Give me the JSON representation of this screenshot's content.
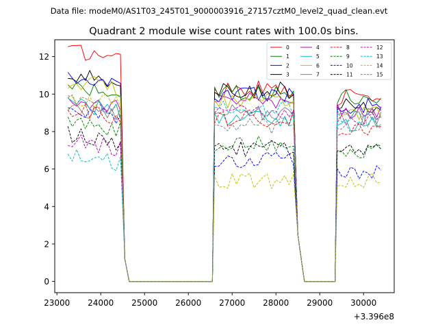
{
  "chart_data": {
    "type": "line",
    "header": "Data file: modeM0/AS1T03_245T01_9000003916_27157cztM0_level2_quad_clean.evt",
    "title": "Quadrant 2 module wise count rates with 100.0s bins.",
    "xlabel": "",
    "ylabel": "",
    "x_offset_label": "+3.396e8",
    "xlim": [
      22950,
      30700
    ],
    "ylim": [
      -0.6,
      12.9
    ],
    "xticks": [
      23000,
      24000,
      25000,
      26000,
      27000,
      28000,
      29000,
      30000
    ],
    "yticks": [
      0,
      2,
      4,
      6,
      8,
      10,
      12
    ],
    "segments": [
      {
        "start": 23250,
        "end": 24450,
        "step": 100
      },
      {
        "start": 26600,
        "end": 28400,
        "step": 100
      },
      {
        "start": 29400,
        "end": 30400,
        "step": 100
      }
    ],
    "zero_ranges": [
      [
        24650,
        26550
      ],
      [
        28650,
        29350
      ]
    ],
    "seg_levels": [
      [
        12.1,
        10.1,
        10.7,
        10.8,
        9.6,
        9.3,
        10.5,
        9.0,
        9.0,
        8.3,
        8.9,
        7.6,
        7.3,
        6.5,
        9.6,
        9.3
      ],
      [
        10.3,
        10.1,
        10.0,
        10.2,
        9.7,
        8.7,
        9.6,
        9.0,
        8.7,
        7.4,
        6.5,
        7.1,
        9.0,
        9.2,
        5.4,
        8.3
      ],
      [
        9.8,
        9.8,
        9.4,
        9.4,
        9.1,
        8.4,
        9.0,
        8.8,
        8.0,
        6.9,
        5.8,
        6.9,
        8.7,
        8.9,
        5.4,
        8.4
      ]
    ],
    "series": [
      {
        "name": "0",
        "color": "#ff0000",
        "dash": false
      },
      {
        "name": "1",
        "color": "#008000",
        "dash": false
      },
      {
        "name": "2",
        "color": "#0000ff",
        "dash": false
      },
      {
        "name": "3",
        "color": "#000000",
        "dash": false
      },
      {
        "name": "4",
        "color": "#bf00bf",
        "dash": false
      },
      {
        "name": "5",
        "color": "#00bfbf",
        "dash": false
      },
      {
        "name": "6",
        "color": "#bfbf00",
        "dash": false
      },
      {
        "name": "7",
        "color": "#808080",
        "dash": false
      },
      {
        "name": "8",
        "color": "#ff0000",
        "dash": true
      },
      {
        "name": "9",
        "color": "#008000",
        "dash": true
      },
      {
        "name": "10",
        "color": "#0000ff",
        "dash": true
      },
      {
        "name": "11",
        "color": "#000000",
        "dash": true
      },
      {
        "name": "12",
        "color": "#bf00bf",
        "dash": true
      },
      {
        "name": "13",
        "color": "#00bfbf",
        "dash": true
      },
      {
        "name": "14",
        "color": "#bfbf00",
        "dash": true
      },
      {
        "name": "15",
        "color": "#808080",
        "dash": true
      }
    ],
    "legend_position": "top-right",
    "legend_columns": 4,
    "grid": false
  }
}
